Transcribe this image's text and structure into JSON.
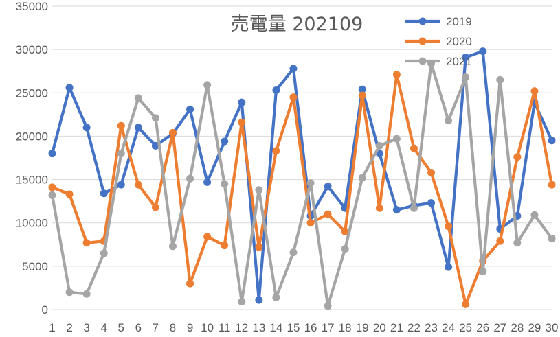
{
  "chart_data": {
    "type": "line",
    "title": "売電量 202109",
    "xlabel": "",
    "ylabel": "",
    "categories": [
      "1",
      "2",
      "3",
      "4",
      "5",
      "6",
      "7",
      "8",
      "9",
      "10",
      "11",
      "12",
      "13",
      "14",
      "15",
      "16",
      "17",
      "18",
      "19",
      "20",
      "21",
      "22",
      "23",
      "24",
      "25",
      "26",
      "27",
      "28",
      "29",
      "30"
    ],
    "ylim": [
      0,
      35000
    ],
    "yticks": [
      0,
      5000,
      10000,
      15000,
      20000,
      25000,
      30000,
      35000
    ],
    "grid": true,
    "legend_position": "top-right",
    "series": [
      {
        "name": "2019",
        "color": "#4472c4",
        "values": [
          18000,
          25600,
          21000,
          13400,
          14400,
          21000,
          18900,
          20300,
          23100,
          14700,
          19400,
          23900,
          1100,
          25300,
          27800,
          10800,
          14200,
          11700,
          25400,
          18000,
          11500,
          12000,
          12300,
          4900,
          29100,
          29800,
          9300,
          10800,
          23900,
          19500
        ]
      },
      {
        "name": "2020",
        "color": "#ed7d31",
        "values": [
          14100,
          13300,
          7700,
          7900,
          21200,
          14400,
          11800,
          20400,
          3000,
          8400,
          7400,
          21600,
          7200,
          18300,
          24500,
          10000,
          11000,
          9000,
          24700,
          11700,
          27100,
          18600,
          15800,
          9600,
          600,
          5600,
          7900,
          17600,
          25200,
          14400
        ]
      },
      {
        "name": "2021",
        "color": "#a5a5a5",
        "values": [
          13200,
          2000,
          1800,
          6500,
          18000,
          24400,
          22100,
          7300,
          15100,
          25900,
          14500,
          900,
          13800,
          1400,
          6600,
          14600,
          400,
          7000,
          15200,
          18900,
          19700,
          11700,
          28400,
          21800,
          26800,
          4400,
          26500,
          7700,
          10900,
          8200
        ]
      }
    ]
  }
}
